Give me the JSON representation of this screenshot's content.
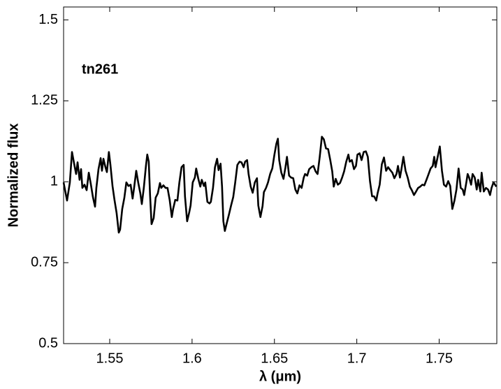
{
  "chart_data": {
    "type": "line",
    "annotation": "tn261",
    "xlabel": "λ (μm)",
    "ylabel": "Normalized flux",
    "color": "#000000",
    "xlim": [
      1.522,
      1.785
    ],
    "ylim": [
      0.5,
      1.54
    ],
    "xticks": [
      1.55,
      1.6,
      1.65,
      1.7,
      1.75
    ],
    "yticks": [
      0.5,
      0.75,
      1,
      1.25,
      1.5
    ],
    "x": [
      1.522,
      1.5241,
      1.5258,
      1.5271,
      1.5288,
      1.5296,
      1.5305,
      1.5317,
      1.5326,
      1.5334,
      1.5347,
      1.536,
      1.5373,
      1.5385,
      1.5398,
      1.5411,
      1.5419,
      1.5432,
      1.5445,
      1.5453,
      1.5462,
      1.5474,
      1.5483,
      1.5495,
      1.5504,
      1.5517,
      1.5529,
      1.5542,
      1.5555,
      1.5563,
      1.5576,
      1.5589,
      1.5601,
      1.5614,
      1.5627,
      1.5639,
      1.5648,
      1.5661,
      1.5673,
      1.5686,
      1.5695,
      1.5707,
      1.572,
      1.5728,
      1.5737,
      1.5745,
      1.5754,
      1.5767,
      1.5779,
      1.5792,
      1.5805,
      1.5813,
      1.5826,
      1.5839,
      1.5851,
      1.5864,
      1.5877,
      1.5885,
      1.5898,
      1.5911,
      1.5923,
      1.5936,
      1.5949,
      1.5957,
      1.597,
      1.5983,
      1.5991,
      1.6004,
      1.6017,
      1.6025,
      1.6038,
      1.605,
      1.6059,
      1.6072,
      1.608,
      1.6093,
      1.6106,
      1.6114,
      1.6127,
      1.6139,
      1.6152,
      1.6161,
      1.6173,
      1.6182,
      1.619,
      1.6199,
      1.6211,
      1.6224,
      1.6237,
      1.625,
      1.6262,
      1.6275,
      1.6288,
      1.63,
      1.6313,
      1.6322,
      1.6334,
      1.6343,
      1.6356,
      1.6368,
      1.6381,
      1.6394,
      1.6402,
      1.6415,
      1.6428,
      1.6436,
      1.6449,
      1.6461,
      1.6474,
      1.6487,
      1.65,
      1.6512,
      1.6521,
      1.6529,
      1.6542,
      1.6555,
      1.6567,
      1.6576,
      1.6589,
      1.6601,
      1.6614,
      1.6627,
      1.6639,
      1.6652,
      1.6665,
      1.6678,
      1.6686,
      1.6699,
      1.6711,
      1.6724,
      1.6737,
      1.675,
      1.6762,
      1.6775,
      1.6788,
      1.68,
      1.6813,
      1.6826,
      1.6839,
      1.6851,
      1.686,
      1.6872,
      1.6885,
      1.6898,
      1.6911,
      1.6923,
      1.6936,
      1.6949,
      1.6957,
      1.697,
      1.6983,
      1.6995,
      1.7004,
      1.7017,
      1.7029,
      1.7042,
      1.7055,
      1.7067,
      1.708,
      1.7093,
      1.7105,
      1.7118,
      1.7127,
      1.7139,
      1.7152,
      1.7165,
      1.7178,
      1.719,
      1.7203,
      1.7216,
      1.7228,
      1.7241,
      1.725,
      1.7262,
      1.7271,
      1.7283,
      1.7296,
      1.7309,
      1.7322,
      1.7334,
      1.7347,
      1.736,
      1.7372,
      1.7385,
      1.7398,
      1.741,
      1.7423,
      1.7436,
      1.7448,
      1.7461,
      1.747,
      1.7478,
      1.7491,
      1.7504,
      1.7517,
      1.7529,
      1.7542,
      1.7555,
      1.7567,
      1.758,
      1.7593,
      1.7605,
      1.7618,
      1.7631,
      1.7643,
      1.7652,
      1.7665,
      1.7673,
      1.7682,
      1.7694,
      1.7703,
      1.7716,
      1.7728,
      1.7737,
      1.775,
      1.7758,
      1.7771,
      1.7784,
      1.7797,
      1.7809,
      1.7818,
      1.783,
      1.7847
    ],
    "values": [
      0.998,
      0.942,
      0.998,
      1.092,
      1.045,
      1.024,
      1.06,
      1.006,
      1.039,
      0.981,
      0.991,
      0.974,
      1.028,
      0.994,
      0.953,
      0.923,
      0.981,
      1.039,
      1.073,
      1.034,
      1.071,
      1.045,
      1.03,
      1.092,
      1.054,
      0.987,
      0.944,
      0.903,
      0.843,
      0.852,
      0.916,
      0.951,
      0.998,
      0.987,
      0.991,
      0.948,
      0.981,
      1.034,
      0.998,
      0.964,
      0.931,
      0.981,
      1.049,
      1.084,
      1.062,
      0.959,
      0.869,
      0.888,
      0.951,
      0.964,
      0.996,
      0.981,
      0.989,
      0.981,
      0.981,
      0.944,
      0.891,
      0.916,
      0.944,
      0.942,
      0.998,
      1.045,
      1.052,
      0.955,
      0.878,
      0.906,
      0.927,
      0.998,
      1.013,
      1.041,
      1.009,
      0.985,
      1.006,
      0.987,
      0.998,
      0.938,
      0.933,
      0.938,
      0.981,
      1.045,
      1.071,
      1.036,
      1.056,
      0.985,
      0.878,
      0.848,
      0.873,
      0.899,
      0.927,
      0.953,
      0.998,
      1.052,
      1.062,
      1.06,
      1.045,
      1.062,
      1.067,
      1.024,
      0.985,
      0.966,
      0.998,
      1.011,
      0.927,
      0.891,
      0.925,
      0.968,
      0.981,
      0.998,
      1.024,
      1.041,
      1.084,
      1.118,
      1.133,
      1.067,
      1.028,
      1.009,
      1.045,
      1.077,
      1.019,
      1.013,
      1.011,
      0.976,
      0.964,
      0.989,
      0.981,
      1.013,
      1.024,
      1.019,
      1.039,
      1.045,
      1.049,
      1.032,
      1.024,
      1.077,
      1.139,
      1.131,
      1.103,
      1.101,
      1.067,
      1.032,
      0.985,
      1.009,
      0.991,
      0.996,
      1.013,
      1.032,
      1.062,
      1.084,
      1.062,
      1.067,
      1.039,
      1.049,
      1.084,
      1.088,
      1.067,
      1.092,
      1.094,
      1.077,
      1.002,
      0.955,
      0.955,
      0.942,
      0.966,
      0.991,
      1.054,
      1.075,
      1.034,
      1.045,
      1.036,
      1.028,
      1.011,
      1.024,
      1.049,
      1.013,
      1.039,
      1.077,
      1.034,
      1.013,
      0.985,
      0.974,
      0.959,
      0.97,
      0.981,
      0.985,
      0.991,
      0.989,
      1.006,
      1.024,
      1.041,
      1.049,
      1.077,
      1.045,
      1.077,
      1.109,
      1.034,
      0.991,
      0.985,
      1.002,
      0.987,
      0.916,
      0.942,
      0.976,
      1.041,
      0.981,
      0.976,
      0.959,
      0.998,
      1.024,
      1.013,
      0.991,
      1.024,
      1.013,
      0.976,
      1.006,
      0.97,
      1.028,
      0.97,
      0.981,
      0.976,
      0.959,
      0.981,
      0.998,
      0.985
    ]
  }
}
